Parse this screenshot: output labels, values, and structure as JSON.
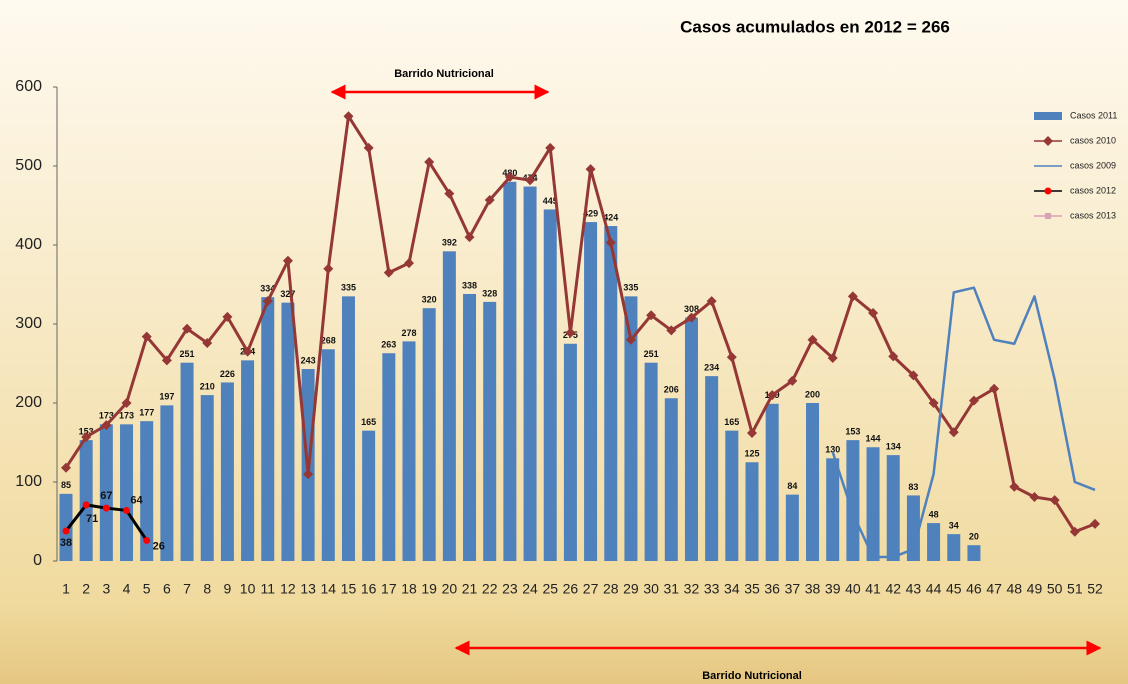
{
  "chart_data": {
    "type": "bar",
    "title": "Casos acumulados  en 2012  = 266",
    "annotations": [
      "Barrido Nutricional",
      "Barrido Nutricional"
    ],
    "categories": [
      "1",
      "2",
      "3",
      "4",
      "5",
      "6",
      "7",
      "8",
      "9",
      "10",
      "11",
      "12",
      "13",
      "14",
      "15",
      "16",
      "17",
      "18",
      "19",
      "20",
      "21",
      "22",
      "23",
      "24",
      "25",
      "26",
      "27",
      "28",
      "29",
      "30",
      "31",
      "32",
      "33",
      "34",
      "35",
      "36",
      "37",
      "38",
      "39",
      "40",
      "41",
      "42",
      "43",
      "44",
      "45",
      "46",
      "47",
      "48",
      "49",
      "50",
      "51",
      "52"
    ],
    "ylim": [
      0,
      600
    ],
    "yticks": [
      0,
      100,
      200,
      300,
      400,
      500,
      600
    ],
    "grid": false,
    "legend": "right",
    "series": [
      {
        "name": "Casos 2011",
        "type": "bar",
        "color": "#4f81bd",
        "data_labels": true,
        "values": [
          85,
          153,
          173,
          173,
          177,
          197,
          251,
          210,
          226,
          254,
          334,
          327,
          243,
          268,
          335,
          165,
          263,
          278,
          320,
          392,
          338,
          328,
          480,
          474,
          445,
          275,
          429,
          424,
          335,
          251,
          206,
          308,
          234,
          165,
          125,
          199,
          84,
          200,
          130,
          153,
          144,
          134,
          83,
          48,
          34,
          20,
          null,
          null,
          null,
          null,
          null,
          null
        ]
      },
      {
        "name": "casos 2010",
        "type": "line",
        "color": "#953735",
        "marker": "diamond",
        "values": [
          118,
          157,
          172,
          200,
          284,
          254,
          294,
          276,
          309,
          265,
          329,
          380,
          110,
          370,
          563,
          523,
          365,
          377,
          505,
          465,
          410,
          457,
          486,
          482,
          523,
          289,
          496,
          403,
          280,
          311,
          292,
          308,
          329,
          258,
          162,
          210,
          228,
          280,
          257,
          335,
          314,
          259,
          235,
          200,
          163,
          203,
          218,
          94,
          81,
          77,
          37,
          47
        ]
      },
      {
        "name": "casos 2009",
        "type": "line",
        "color": "#4f81bd",
        "marker": "none",
        "values": [
          null,
          null,
          null,
          null,
          null,
          null,
          null,
          null,
          null,
          null,
          null,
          null,
          null,
          null,
          null,
          null,
          null,
          null,
          null,
          null,
          null,
          null,
          null,
          null,
          null,
          null,
          null,
          null,
          null,
          null,
          null,
          null,
          null,
          null,
          null,
          null,
          null,
          null,
          138,
          60,
          5,
          5,
          15,
          110,
          340,
          346,
          280,
          275,
          335,
          230,
          100,
          90
        ]
      },
      {
        "name": "casos 2012",
        "type": "line",
        "color": "#000000",
        "marker_color": "#ff0000",
        "marker": "circle",
        "data_labels": true,
        "values": [
          38,
          71,
          67,
          64,
          26,
          null,
          null,
          null,
          null,
          null,
          null,
          null,
          null,
          null,
          null,
          null,
          null,
          null,
          null,
          null,
          null,
          null,
          null,
          null,
          null,
          null,
          null,
          null,
          null,
          null,
          null,
          null,
          null,
          null,
          null,
          null,
          null,
          null,
          null,
          null,
          null,
          null,
          null,
          null,
          null,
          null,
          null,
          null,
          null,
          null,
          null,
          null
        ]
      },
      {
        "name": "casos 2013",
        "type": "line",
        "color": "#d9a0b8",
        "marker": "square",
        "values": [
          null,
          null,
          null,
          null,
          null,
          null,
          null,
          null,
          null,
          null,
          null,
          null,
          null,
          null,
          null,
          null,
          null,
          null,
          null,
          null,
          null,
          null,
          null,
          null,
          null,
          null,
          null,
          null,
          null,
          null,
          null,
          null,
          null,
          null,
          null,
          null,
          null,
          null,
          null,
          null,
          null,
          null,
          null,
          null,
          null,
          null,
          null,
          null,
          null,
          null,
          null,
          null
        ]
      }
    ]
  }
}
